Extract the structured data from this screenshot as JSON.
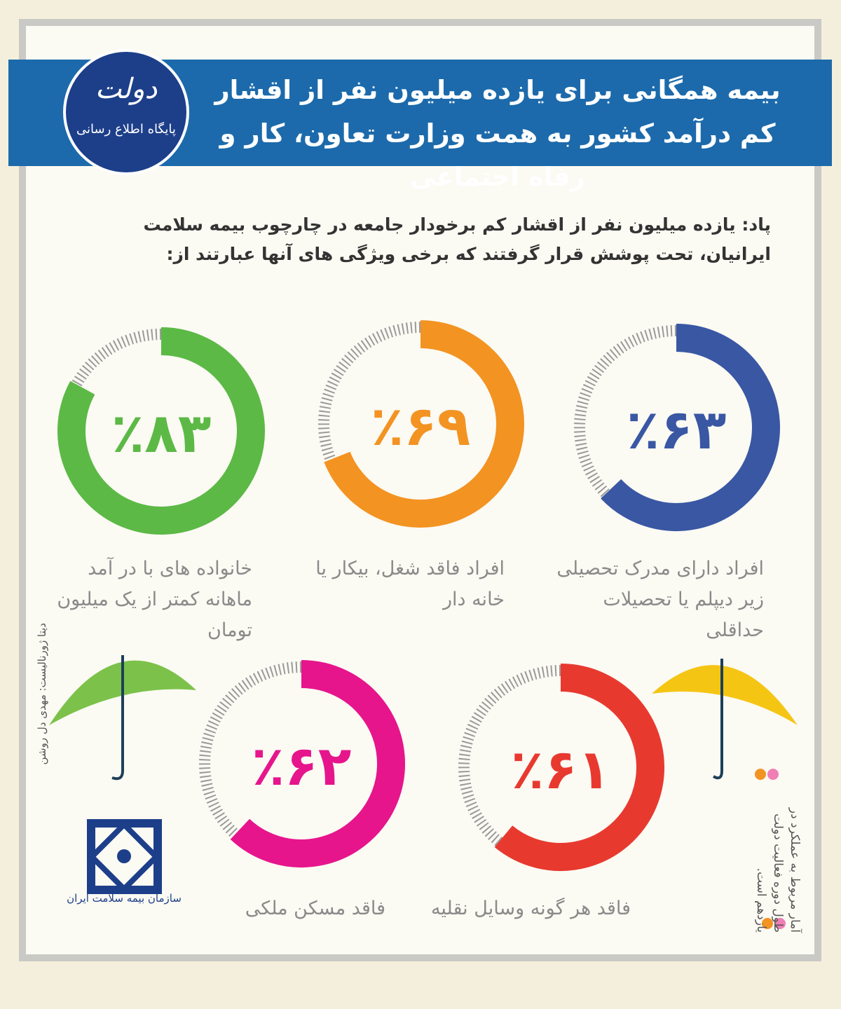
{
  "chart_data": {
    "type": "gauge",
    "title": "بیمه همگانی برای یازده میلیون نفر از اقشار کم درآمد کشور به همت وزارت تعاون، کار و رفاه اجتماعی",
    "subtitle": "پاد: یازده میلیون نفر از اقشار کم برخودار جامعه در چارچوب بیمه سلامت ایرانیان، تحت پوشش قرار گرفتند که برخی ویژگی های آنها عبارتند از:",
    "categories": [
      "افراد دارای مدرک تحصیلی زیر دیپلم یا تحصیلات حداقلی",
      "افراد فاقد شغل، بیکار یا خانه دار",
      "خانواده های با در آمد ماهانه کمتر از یک میلیون تومان",
      "فاقد هر گونه وسایل نقلیه",
      "فاقد مسکن ملکی"
    ],
    "values": [
      63,
      69,
      83,
      61,
      62
    ],
    "value_labels": [
      "٪۶۳",
      "٪۶۹",
      "٪۸۳",
      "٪۶۱",
      "٪۶۲"
    ],
    "colors": [
      "#3a57a4",
      "#f39322",
      "#5cb946",
      "#e8392f",
      "#e6158c"
    ],
    "ylim": [
      0,
      100
    ]
  },
  "logo": {
    "name": "دولت",
    "tagline": "پایگاه اطلاع رسانی"
  },
  "footnote": "آمار مربوط به عملکرد در طول دوره فعالیت دولت یازدهم است.",
  "credit": "دیتا ژورنالیست: مهدی دل روشن",
  "org": "سازمان بیمه سلامت ایران"
}
